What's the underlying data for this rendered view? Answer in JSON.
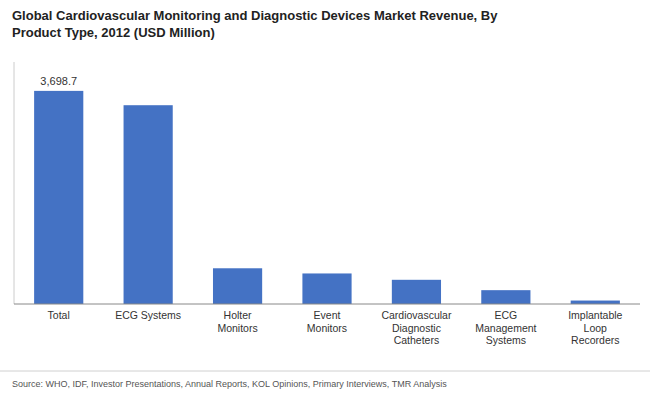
{
  "chart_data": {
    "type": "bar",
    "title": "Global Cardiovascular Monitoring and Diagnostic Devices Market Revenue, By\nProduct Type, 2012 (USD Million)",
    "categories": [
      "Total",
      "ECG Systems",
      "Holter\nMonitors",
      "Event\nMonitors",
      "Cardiovascular\nDiagnostic\nCatheters",
      "ECG\nManagement\nSystems",
      "Implantable\nLoop\nRecorders"
    ],
    "values": [
      3698.7,
      3450,
      620,
      530,
      420,
      240,
      60
    ],
    "value_labels": [
      "3,698.7",
      null,
      null,
      null,
      null,
      null,
      null
    ],
    "data_labels": true,
    "color": "#4472C4",
    "ylim": [
      0,
      4200
    ],
    "tick_labels": "x",
    "grid": false,
    "source": "Source: WHO, IDF, Investor Presentations, Annual Reports, KOL Opinions, Primary Interviews, TMR Analysis"
  }
}
